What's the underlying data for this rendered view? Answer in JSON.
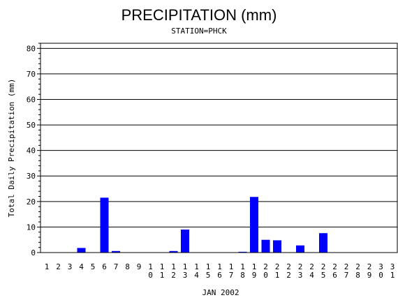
{
  "chart_data": {
    "type": "bar",
    "title": "PRECIPITATION (mm)",
    "subtitle": "STATION=PHCK",
    "ylabel": "Total Daily Precipitation (mm)",
    "xlabel": "JAN 2002",
    "ylim": [
      0,
      82
    ],
    "y_ticks": [
      0,
      10,
      20,
      30,
      40,
      50,
      60,
      70,
      80
    ],
    "grid": true,
    "bar_color": "#0000ff",
    "categories": [
      "1",
      "2",
      "3",
      "4",
      "5",
      "6",
      "7",
      "8",
      "9",
      "10",
      "11",
      "12",
      "13",
      "14",
      "15",
      "16",
      "17",
      "18",
      "19",
      "20",
      "21",
      "22",
      "23",
      "24",
      "25",
      "26",
      "27",
      "28",
      "29",
      "30",
      "31"
    ],
    "values": [
      0,
      0,
      0,
      1.8,
      0,
      21.5,
      0.6,
      0,
      0,
      0,
      0,
      0.6,
      9.0,
      0,
      0,
      0,
      0,
      0.3,
      21.8,
      5.0,
      4.8,
      0,
      2.8,
      0,
      7.6,
      0,
      0,
      0,
      0,
      0,
      0
    ]
  }
}
